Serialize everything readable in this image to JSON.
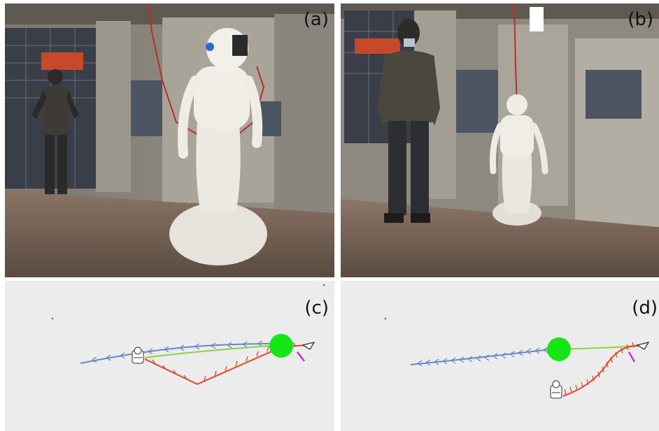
{
  "panels": {
    "a": {
      "label": "(a)"
    },
    "b": {
      "label": "(b)"
    },
    "c": {
      "label": "(c)"
    },
    "d": {
      "label": "(d)"
    }
  },
  "colors": {
    "backward_trajectory": "#6a86c8",
    "robot_path": "#e0442c",
    "planned_path": "#8ad43a",
    "goal": "#16e516",
    "heading_arrow": "#d12ad1",
    "plot_background": "#ececec"
  },
  "icons": [
    "robot-icon",
    "goal-marker-icon",
    "arrow-icon"
  ]
}
